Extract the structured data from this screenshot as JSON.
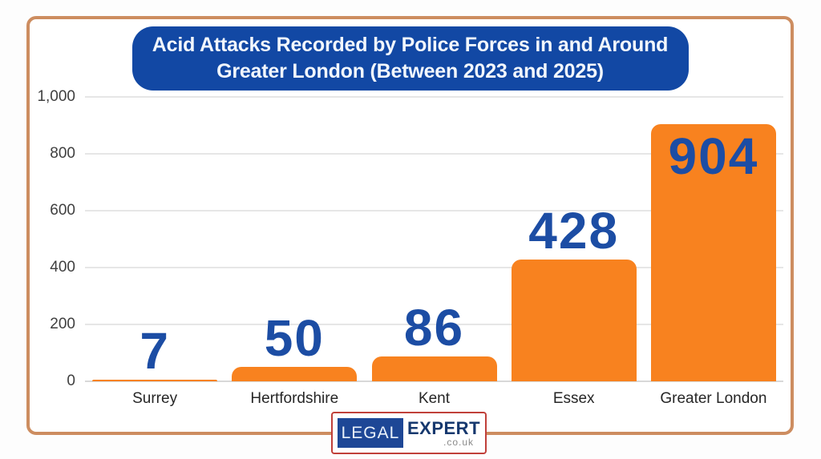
{
  "title": {
    "line1": "Acid Attacks Recorded by Police Forces in and Around",
    "line2": "Greater London (Between 2023 and 2025)"
  },
  "chart_data": {
    "type": "bar",
    "categories": [
      "Surrey",
      "Hertfordshire",
      "Kent",
      "Essex",
      "Greater London"
    ],
    "values": [
      7,
      50,
      86,
      428,
      904
    ],
    "title": "Acid Attacks Recorded by Police Forces in and Around Greater London (Between 2023 and 2025)",
    "xlabel": "",
    "ylabel": "",
    "ylim": [
      0,
      1000
    ],
    "yticks": [
      0,
      200,
      400,
      600,
      800,
      1000
    ],
    "ytick_labels": [
      "0",
      "200",
      "400",
      "600",
      "800",
      "1,000"
    ],
    "grid": true,
    "legend": false,
    "bar_color": "#F8821F",
    "value_label_color": "#1C4DA4"
  },
  "colors": {
    "frame_border": "#CD8D60",
    "title_box_bg": "#1248A4",
    "title_text": "#F2F7FD",
    "bar_orange": "#F8821F",
    "value_label_blue": "#1C4DA4",
    "gridline": "#E6E6E6",
    "axis_text": "#3F3F3F",
    "category_text": "#262626",
    "logo_border_red": "#C0403A",
    "logo_blue_bg": "#1E4796",
    "logo_expert_navy": "#16386E",
    "logo_couk_gray": "#8A8A8A"
  },
  "logo": {
    "part1": "LEGAL",
    "part2": "EXPERT",
    "part3": ".co.uk"
  }
}
